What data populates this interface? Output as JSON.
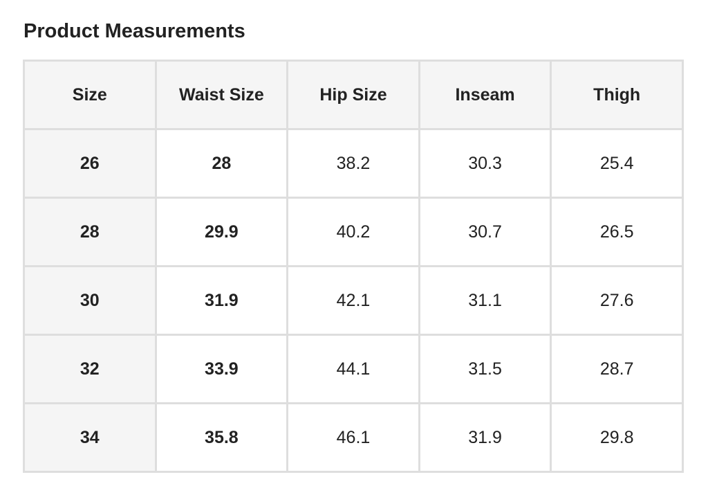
{
  "header": {
    "title": "Product Measurements"
  },
  "table": {
    "columns": [
      "Size",
      "Waist Size",
      "Hip Size",
      "Inseam",
      "Thigh"
    ],
    "rows": [
      [
        26,
        28,
        38.2,
        30.3,
        25.4
      ],
      [
        28,
        29.9,
        40.2,
        30.7,
        26.5
      ],
      [
        30,
        31.9,
        42.1,
        31.1,
        27.6
      ],
      [
        32,
        33.9,
        44.1,
        31.5,
        28.7
      ],
      [
        34,
        35.8,
        46.1,
        31.9,
        29.8
      ]
    ]
  }
}
